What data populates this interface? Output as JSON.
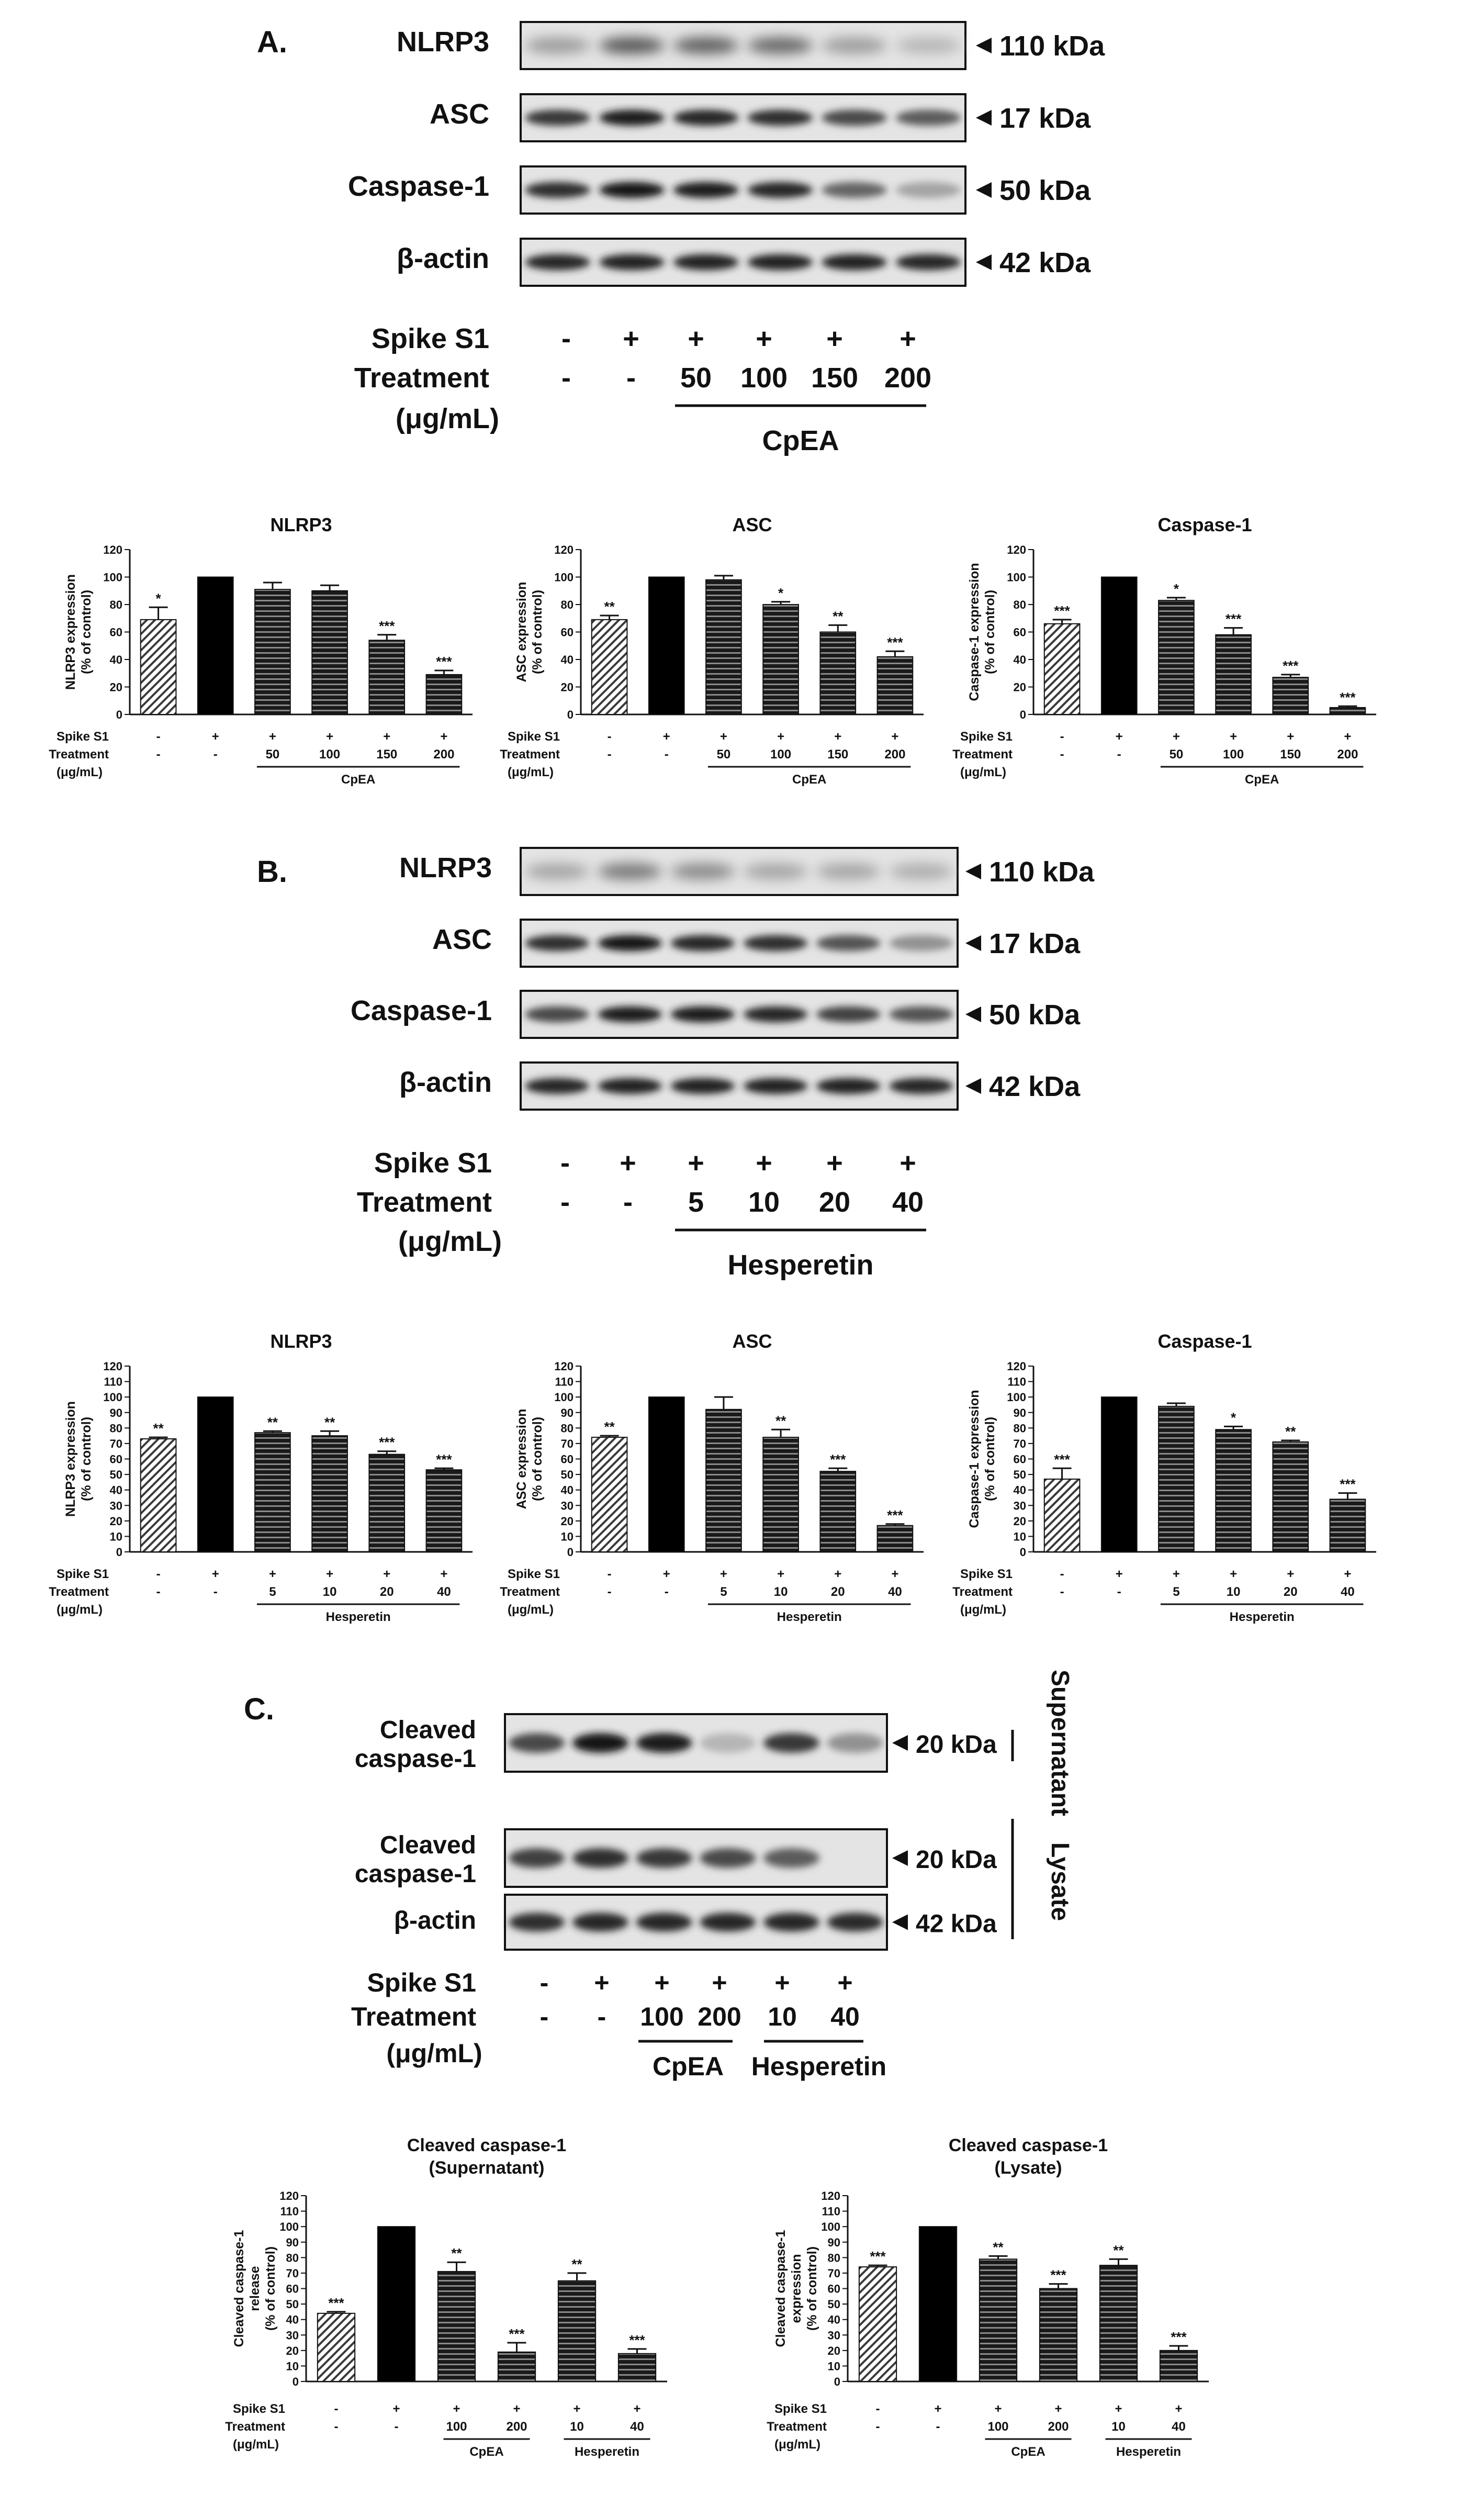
{
  "panels": [
    {
      "letter": "A.",
      "blot": {
        "rows": [
          {
            "label": "NLRP3",
            "kda": "110 kDa"
          },
          {
            "label": "ASC",
            "kda": "17 kDa"
          },
          {
            "label": "Caspase-1",
            "kda": "50 kDa"
          },
          {
            "label": "β-actin",
            "kda": "42 kDa"
          }
        ],
        "spike": [
          "-",
          "+",
          "+",
          "+",
          "+",
          "+"
        ],
        "treatment": [
          "-",
          "-",
          "50",
          "100",
          "150",
          "200"
        ],
        "group_label": "CpEA"
      }
    },
    {
      "letter": "B.",
      "blot": {
        "rows": [
          {
            "label": "NLRP3",
            "kda": "110 kDa"
          },
          {
            "label": "ASC",
            "kda": "17 kDa"
          },
          {
            "label": "Caspase-1",
            "kda": "50 kDa"
          },
          {
            "label": "β-actin",
            "kda": "42 kDa"
          }
        ],
        "spike": [
          "-",
          "+",
          "+",
          "+",
          "+",
          "+"
        ],
        "treatment": [
          "-",
          "-",
          "5",
          "10",
          "20",
          "40"
        ],
        "group_label": "Hesperetin"
      }
    },
    {
      "letter": "C.",
      "blot": {
        "rows": [
          {
            "label": [
              "Cleaved",
              "caspase-1"
            ],
            "kda": "20 kDa"
          },
          {
            "label": [
              "Cleaved",
              "caspase-1"
            ],
            "kda": "20 kDa"
          },
          {
            "label": "β-actin",
            "kda": "42 kDa"
          }
        ],
        "side_labels": [
          "Supernatant",
          "Lysate"
        ],
        "spike": [
          "-",
          "+",
          "+",
          "+",
          "+",
          "+"
        ],
        "treatment": [
          "-",
          "-",
          "100",
          "200",
          "10",
          "40"
        ],
        "group_labels": [
          "CpEA",
          "Hesperetin"
        ]
      }
    }
  ],
  "row_labels": {
    "big": {
      "spike": "Spike S1",
      "treatment": "Treatment",
      "unit": "(μg/mL)"
    },
    "small": {
      "spike": "Spike S1",
      "treatment": "Treatment",
      "unit": "(μg/mL)"
    }
  },
  "chart_data": [
    {
      "type": "bar",
      "title": "NLRP3",
      "ylabel": [
        "NLRP3 expression",
        "(% of control)"
      ],
      "ylim": [
        0,
        120
      ],
      "yticks": [
        "0",
        "20",
        "40",
        "60",
        "80",
        "100",
        "120"
      ],
      "values": [
        69,
        100,
        91,
        90,
        54,
        29
      ],
      "errors": [
        9,
        0,
        5,
        4,
        4,
        3
      ],
      "sig": [
        "*",
        "",
        "",
        "",
        "***",
        "***"
      ],
      "spike": [
        "-",
        "+",
        "+",
        "+",
        "+",
        "+"
      ],
      "treatment": [
        "-",
        "-",
        "50",
        "100",
        "150",
        "200"
      ],
      "group_label": "CpEA"
    },
    {
      "type": "bar",
      "title": "ASC",
      "ylabel": [
        "ASC expression",
        "(% of control)"
      ],
      "ylim": [
        0,
        120
      ],
      "yticks": [
        "0",
        "20",
        "40",
        "60",
        "80",
        "100",
        "120"
      ],
      "values": [
        69,
        100,
        98,
        80,
        60,
        42
      ],
      "errors": [
        3,
        0,
        3,
        2,
        5,
        4
      ],
      "sig": [
        "**",
        "",
        "",
        "*",
        "**",
        "***"
      ],
      "spike": [
        "-",
        "+",
        "+",
        "+",
        "+",
        "+"
      ],
      "treatment": [
        "-",
        "-",
        "50",
        "100",
        "150",
        "200"
      ],
      "group_label": "CpEA"
    },
    {
      "type": "bar",
      "title": "Caspase-1",
      "ylabel": [
        "Caspase-1 expression",
        "(% of control)"
      ],
      "ylim": [
        0,
        120
      ],
      "yticks": [
        "0",
        "20",
        "40",
        "60",
        "80",
        "100",
        "120"
      ],
      "values": [
        66,
        100,
        83,
        58,
        27,
        5
      ],
      "errors": [
        3,
        0,
        2,
        5,
        2,
        1
      ],
      "sig": [
        "***",
        "",
        "*",
        "***",
        "***",
        "***"
      ],
      "spike": [
        "-",
        "+",
        "+",
        "+",
        "+",
        "+"
      ],
      "treatment": [
        "-",
        "-",
        "50",
        "100",
        "150",
        "200"
      ],
      "group_label": "CpEA"
    },
    {
      "type": "bar",
      "title": "NLRP3",
      "ylabel": [
        "NLRP3 expression",
        "(% of control)"
      ],
      "ylim": [
        0,
        120
      ],
      "yticks": [
        "0",
        "10",
        "20",
        "30",
        "40",
        "50",
        "60",
        "70",
        "80",
        "90",
        "100",
        "110",
        "120"
      ],
      "values": [
        73,
        100,
        77,
        75,
        63,
        53
      ],
      "errors": [
        1,
        0,
        1,
        3,
        2,
        1
      ],
      "sig": [
        "**",
        "",
        "**",
        "**",
        "***",
        "***"
      ],
      "spike": [
        "-",
        "+",
        "+",
        "+",
        "+",
        "+"
      ],
      "treatment": [
        "-",
        "-",
        "5",
        "10",
        "20",
        "40"
      ],
      "group_label": "Hesperetin"
    },
    {
      "type": "bar",
      "title": "ASC",
      "ylabel": [
        "ASC expression",
        "(% of control)"
      ],
      "ylim": [
        0,
        120
      ],
      "yticks": [
        "0",
        "10",
        "20",
        "30",
        "40",
        "50",
        "60",
        "70",
        "80",
        "90",
        "100",
        "110",
        "120"
      ],
      "values": [
        74,
        100,
        92,
        74,
        52,
        17
      ],
      "errors": [
        1,
        0,
        8,
        5,
        2,
        1
      ],
      "sig": [
        "**",
        "",
        "",
        "**",
        "***",
        "***"
      ],
      "spike": [
        "-",
        "+",
        "+",
        "+",
        "+",
        "+"
      ],
      "treatment": [
        "-",
        "-",
        "5",
        "10",
        "20",
        "40"
      ],
      "group_label": "Hesperetin"
    },
    {
      "type": "bar",
      "title": "Caspase-1",
      "ylabel": [
        "Caspase-1 expression",
        "(% of control)"
      ],
      "ylim": [
        0,
        120
      ],
      "yticks": [
        "0",
        "10",
        "20",
        "30",
        "40",
        "50",
        "60",
        "70",
        "80",
        "90",
        "100",
        "110",
        "120"
      ],
      "values": [
        47,
        100,
        94,
        79,
        71,
        34
      ],
      "errors": [
        7,
        0,
        2,
        2,
        1,
        4
      ],
      "sig": [
        "***",
        "",
        "",
        "*",
        "**",
        "***"
      ],
      "spike": [
        "-",
        "+",
        "+",
        "+",
        "+",
        "+"
      ],
      "treatment": [
        "-",
        "-",
        "5",
        "10",
        "20",
        "40"
      ],
      "group_label": "Hesperetin"
    },
    {
      "type": "bar",
      "title": [
        "Cleaved caspase-1",
        "(Supernatant)"
      ],
      "ylabel": [
        "Cleaved caspase-1",
        "release",
        "(% of control)"
      ],
      "ylim": [
        0,
        120
      ],
      "yticks": [
        "0",
        "10",
        "20",
        "30",
        "40",
        "50",
        "60",
        "70",
        "80",
        "90",
        "100",
        "110",
        "120"
      ],
      "values": [
        44,
        100,
        71,
        19,
        65,
        18
      ],
      "errors": [
        1,
        0,
        6,
        6,
        5,
        3
      ],
      "sig": [
        "***",
        "",
        "**",
        "***",
        "**",
        "***"
      ],
      "spike": [
        "-",
        "+",
        "+",
        "+",
        "+",
        "+"
      ],
      "treatment": [
        "-",
        "-",
        "100",
        "200",
        "10",
        "40"
      ],
      "group_labels": [
        "CpEA",
        "Hesperetin"
      ]
    },
    {
      "type": "bar",
      "title": [
        "Cleaved caspase-1",
        "(Lysate)"
      ],
      "ylabel": [
        "Cleaved caspase-1",
        "expression",
        "(% of control)"
      ],
      "ylim": [
        0,
        120
      ],
      "yticks": [
        "0",
        "10",
        "20",
        "30",
        "40",
        "50",
        "60",
        "70",
        "80",
        "90",
        "100",
        "110",
        "120"
      ],
      "values": [
        74,
        100,
        79,
        60,
        75,
        20
      ],
      "errors": [
        1,
        0,
        2,
        3,
        4,
        3
      ],
      "sig": [
        "***",
        "",
        "**",
        "***",
        "**",
        "***"
      ],
      "spike": [
        "-",
        "+",
        "+",
        "+",
        "+",
        "+"
      ],
      "treatment": [
        "-",
        "-",
        "100",
        "200",
        "10",
        "40"
      ],
      "group_labels": [
        "CpEA",
        "Hesperetin"
      ]
    }
  ]
}
